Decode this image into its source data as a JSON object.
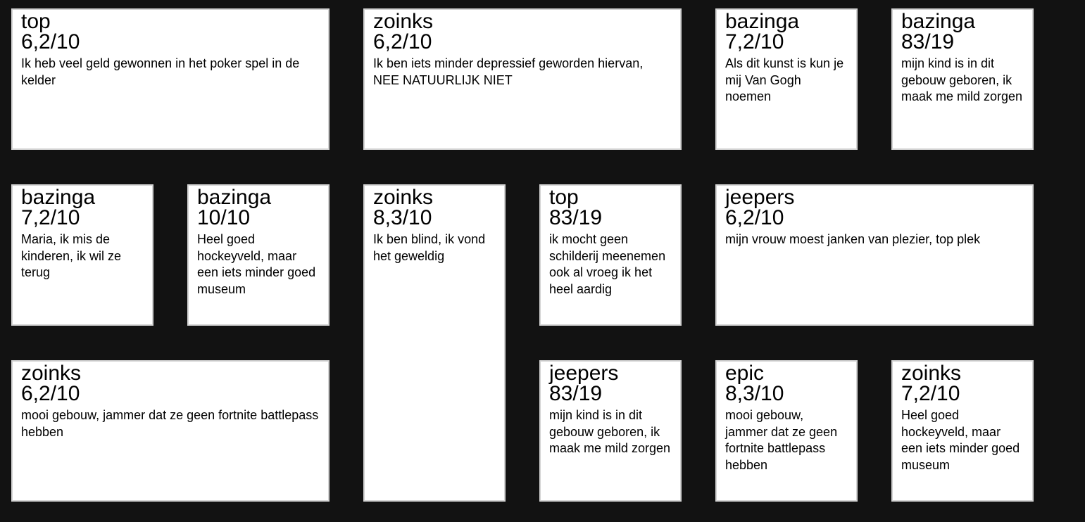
{
  "theme": {
    "page_background": "#121212",
    "card_background": "#ffffff",
    "card_border": "#d3d3d3",
    "card_text": "#000000"
  },
  "cards": [
    {
      "title": "top",
      "rating": "6,2/10",
      "review": "Ik heb veel geld gewonnen in het poker spel in de kelder",
      "span_cols": 2,
      "span_rows": 1
    },
    {
      "title": "zoinks",
      "rating": "6,2/10",
      "review": "Ik ben iets minder depressief geworden hiervan, NEE NATUURLIJK NIET",
      "span_cols": 2,
      "span_rows": 1
    },
    {
      "title": "bazinga",
      "rating": "7,2/10",
      "review": "Als dit kunst is kun je mij Van Gogh noemen",
      "span_cols": 1,
      "span_rows": 1
    },
    {
      "title": "bazinga",
      "rating": "83/19",
      "review": "mijn kind is in dit gebouw geboren, ik maak me mild zorgen",
      "span_cols": 1,
      "span_rows": 1
    },
    {
      "title": "bazinga",
      "rating": "7,2/10",
      "review": "Maria, ik mis de kinderen, ik wil ze terug",
      "span_cols": 1,
      "span_rows": 1
    },
    {
      "title": "bazinga",
      "rating": "10/10",
      "review": "Heel goed hockeyveld, maar een iets minder goed museum",
      "span_cols": 1,
      "span_rows": 1
    },
    {
      "title": "zoinks",
      "rating": "8,3/10",
      "review": "Ik ben blind, ik vond het geweldig",
      "span_cols": 1,
      "span_rows": 2
    },
    {
      "title": "top",
      "rating": "83/19",
      "review": "ik mocht geen schilderij meenemen ook al vroeg ik het heel aardig",
      "span_cols": 1,
      "span_rows": 1
    },
    {
      "title": "jeepers",
      "rating": "6,2/10",
      "review": "mijn vrouw moest janken van plezier, top plek",
      "span_cols": 2,
      "span_rows": 1
    },
    {
      "title": "zoinks",
      "rating": "6,2/10",
      "review": "mooi gebouw, jammer dat ze geen fortnite battlepass hebben",
      "span_cols": 2,
      "span_rows": 1
    },
    {
      "title": "jeepers",
      "rating": "83/19",
      "review": "mijn kind is in dit gebouw geboren, ik maak me mild zorgen",
      "span_cols": 1,
      "span_rows": 1
    },
    {
      "title": "epic",
      "rating": "8,3/10",
      "review": "mooi gebouw, jammer dat ze geen fortnite battlepass hebben",
      "span_cols": 1,
      "span_rows": 1
    },
    {
      "title": "zoinks",
      "rating": "7,2/10",
      "review": "Heel goed hockeyveld, maar een iets minder goed museum",
      "span_cols": 1,
      "span_rows": 1
    }
  ]
}
